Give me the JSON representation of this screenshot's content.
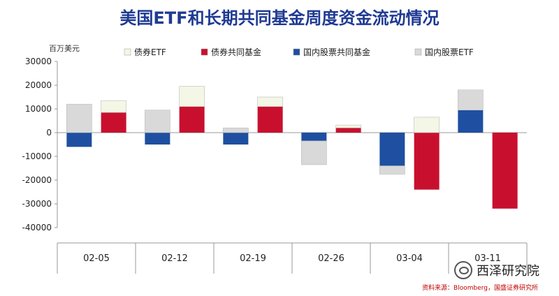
{
  "chart_data": {
    "type": "bar",
    "stacked": true,
    "title": "美国ETF和长期共同基金周度资金流动情况",
    "ylabel": "百万美元",
    "ylim": [
      -40000,
      30000
    ],
    "yticks": [
      "30000",
      "20000",
      "10000",
      "0",
      "-10000",
      "-20000",
      "-30000",
      "-40000"
    ],
    "categories": [
      "02-05",
      "02-12",
      "02-19",
      "02-26",
      "03-04",
      "03-11"
    ],
    "series": [
      {
        "name": "债券ETF",
        "color": "#f4f6e6",
        "pairs": [
          [
            0,
            0
          ],
          [
            8500,
            5000
          ],
          [
            0,
            0
          ],
          [
            11000,
            8500
          ],
          [
            0,
            0
          ],
          [
            11000,
            4000
          ],
          [
            0,
            0
          ],
          [
            2000,
            1200
          ],
          [
            0,
            0
          ],
          [
            0,
            6500
          ],
          [
            0,
            0
          ],
          [
            0,
            0
          ]
        ]
      },
      {
        "name": "债券共同基金",
        "color": "#c8102e",
        "pairs": [
          [
            0,
            0
          ],
          [
            8500,
            5000
          ],
          [
            0,
            0
          ],
          [
            11000,
            8500
          ],
          [
            0,
            0
          ],
          [
            11000,
            4000
          ],
          [
            0,
            0
          ],
          [
            2000,
            1200
          ],
          [
            0,
            0
          ],
          [
            -24000,
            6500
          ],
          [
            0,
            0
          ],
          [
            -32000,
            0
          ]
        ]
      },
      {
        "name": "国内股票共同基金",
        "color": "#1f4fa0",
        "pairs": [
          [
            -6000,
            0
          ],
          [
            0,
            0
          ],
          [
            -5000,
            0
          ],
          [
            0,
            0
          ],
          [
            -5000,
            0
          ],
          [
            0,
            0
          ],
          [
            -3500,
            0
          ],
          [
            0,
            0
          ],
          [
            -14000,
            0
          ],
          [
            0,
            0
          ],
          [
            9500,
            0
          ],
          [
            0,
            0
          ]
        ]
      },
      {
        "name": "国内股票ETF",
        "color": "#d9d9d9",
        "pairs": [
          [
            12000,
            0
          ],
          [
            0,
            0
          ],
          [
            9500,
            0
          ],
          [
            0,
            0
          ],
          [
            2000,
            0
          ],
          [
            0,
            0
          ],
          [
            -10000,
            0
          ],
          [
            0,
            0
          ],
          [
            -3500,
            0
          ],
          [
            0,
            0
          ],
          [
            8500,
            0
          ],
          [
            0,
            0
          ]
        ]
      }
    ],
    "grid": false,
    "legend": "top"
  },
  "source_text": "资料来源：Bloomberg，国盛证券研究所",
  "watermark_text": "西泽研究院"
}
